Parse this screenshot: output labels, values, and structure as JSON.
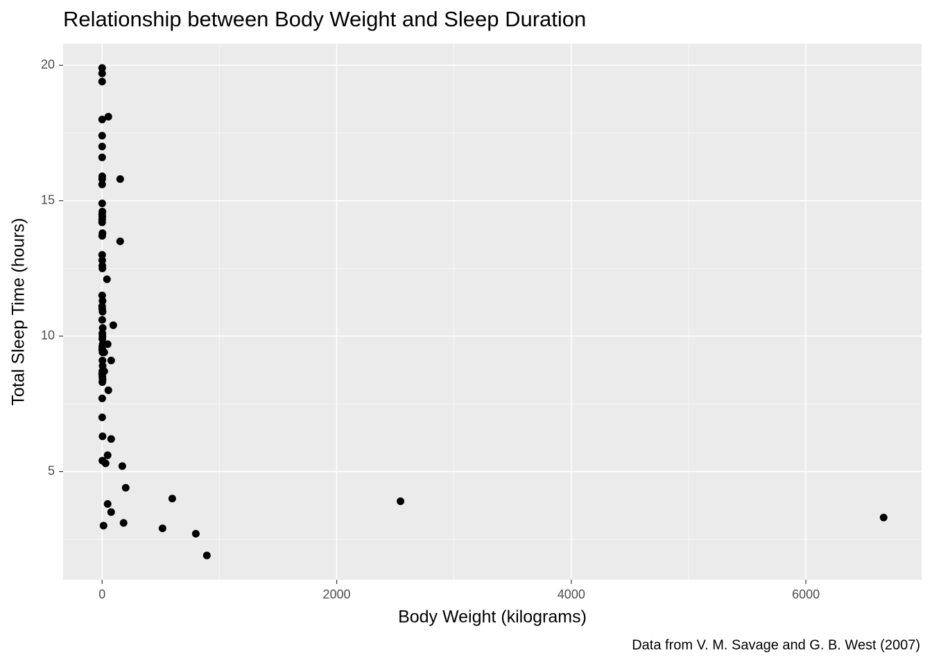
{
  "chart_data": {
    "type": "scatter",
    "title": "Relationship between Body Weight and Sleep Duration",
    "x_label": "Body Weight (kilograms)",
    "y_label": "Total Sleep Time (hours)",
    "caption": "Data from V. M. Savage and G. B. West (2007)",
    "color": "#000000",
    "grid": true,
    "xlim": [
      -332.7,
      6986.7
    ],
    "ylim": [
      1.0,
      20.8
    ],
    "xticks": [
      0,
      2000,
      4000,
      6000
    ],
    "yticks": [
      5,
      10,
      15,
      20
    ],
    "x": [
      0.02,
      0.01,
      0.005,
      0.3,
      0.1,
      0.2,
      0.05,
      1.0,
      0.5,
      0.03,
      0.5,
      2.0,
      0.4,
      1.5,
      0.2,
      0.1,
      3.0,
      0.8,
      0.3,
      0.9,
      1.6,
      2.5,
      0.4,
      3.5,
      0.06,
      1.1,
      4.0,
      0.7,
      5.0,
      2.0,
      3.0,
      1.8,
      4.5,
      1.2,
      0.9,
      3.3,
      2.8,
      4.2,
      1.7,
      0.5,
      2.6,
      3.9,
      1.9,
      0.7,
      0.6,
      3.6,
      2.2,
      53,
      154,
      154,
      41,
      95,
      47,
      18,
      77,
      18,
      53,
      77,
      47,
      30,
      172,
      201,
      598,
      2544,
      6663,
      47,
      77,
      12,
      183,
      515,
      799,
      893
    ],
    "values": [
      19.9,
      19.7,
      19.4,
      18.0,
      17.4,
      17.0,
      16.6,
      15.9,
      15.8,
      15.6,
      14.9,
      14.6,
      14.5,
      14.4,
      14.3,
      14.2,
      13.8,
      13.7,
      13.0,
      12.8,
      12.6,
      12.5,
      11.5,
      11.3,
      11.1,
      11.0,
      10.9,
      10.6,
      10.3,
      10.1,
      10.0,
      9.9,
      9.7,
      9.6,
      9.5,
      9.4,
      9.1,
      8.9,
      8.7,
      8.6,
      8.5,
      8.4,
      8.3,
      7.7,
      7.0,
      6.3,
      5.4,
      18.1,
      15.8,
      13.5,
      12.1,
      10.4,
      9.7,
      9.4,
      9.1,
      8.7,
      8.0,
      6.2,
      5.6,
      5.3,
      5.2,
      4.4,
      4.0,
      3.9,
      3.3,
      3.8,
      3.5,
      3.0,
      3.1,
      2.9,
      2.7,
      1.9
    ]
  }
}
